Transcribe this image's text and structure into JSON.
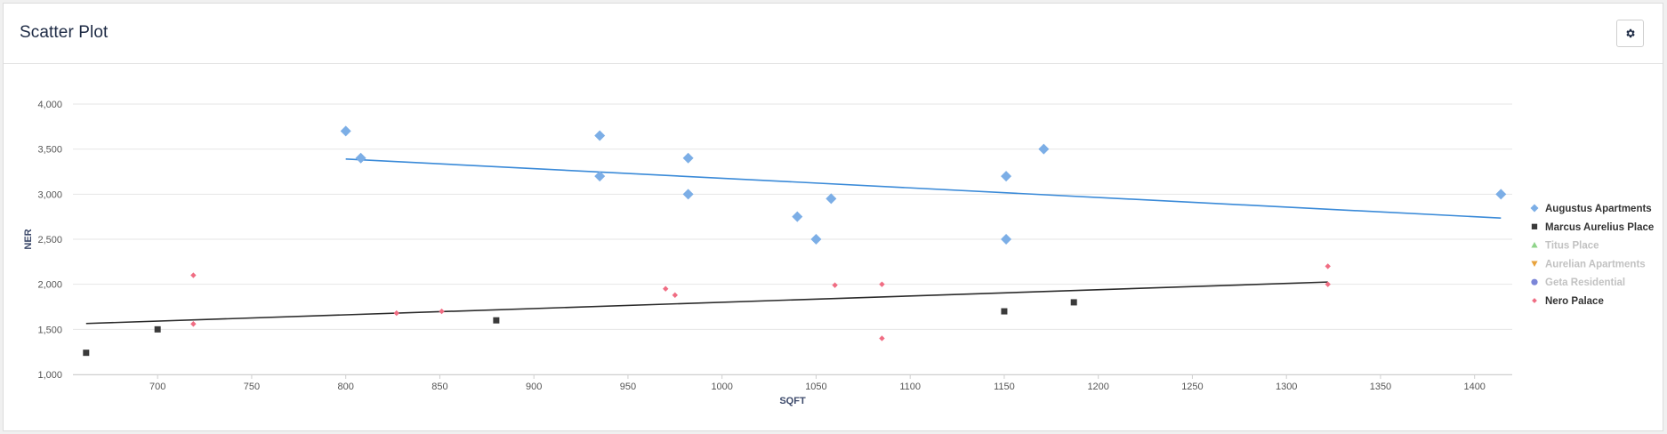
{
  "panel": {
    "title": "Scatter Plot",
    "settings_icon": "gear-icon"
  },
  "chart_data": {
    "type": "scatter",
    "xlabel": "SQFT",
    "ylabel": "NER",
    "xlim": [
      655,
      1420
    ],
    "ylim": [
      1000,
      4000
    ],
    "x_ticks": [
      700,
      750,
      800,
      850,
      900,
      950,
      1000,
      1050,
      1100,
      1150,
      1200,
      1250,
      1300,
      1350,
      1400
    ],
    "y_ticks": [
      1000,
      1500,
      2000,
      2500,
      3000,
      3500,
      4000
    ],
    "grid": "horizontal",
    "legend_position": "right",
    "series": [
      {
        "name": "Augustus Apartments",
        "marker": "diamond",
        "color": "#7caee6",
        "visible": true,
        "points": [
          [
            800,
            3700
          ],
          [
            808,
            3400
          ],
          [
            935,
            3650
          ],
          [
            935,
            3200
          ],
          [
            982,
            3400
          ],
          [
            982,
            3000
          ],
          [
            1040,
            2750
          ],
          [
            1050,
            2500
          ],
          [
            1058,
            2950
          ],
          [
            1151,
            3200
          ],
          [
            1151,
            2500
          ],
          [
            1171,
            3500
          ],
          [
            1414,
            3000
          ]
        ],
        "trendline": {
          "color": "#3a8ad8",
          "from": [
            800,
            3390
          ],
          "to": [
            1414,
            2735
          ]
        }
      },
      {
        "name": "Marcus Aurelius Place",
        "marker": "square",
        "color": "#3a3a3a",
        "visible": true,
        "points": [
          [
            662,
            1240
          ],
          [
            700,
            1500
          ],
          [
            880,
            1600
          ],
          [
            1150,
            1700
          ],
          [
            1187,
            1800
          ]
        ],
        "trendline": {
          "color": "#2b2b2b",
          "from": [
            662,
            1565
          ],
          "to": [
            1322,
            2025
          ]
        }
      },
      {
        "name": "Titus Place",
        "marker": "triangle-up",
        "color": "#8fd48a",
        "visible": false,
        "points": []
      },
      {
        "name": "Aurelian Apartments",
        "marker": "triangle-down",
        "color": "#e8a33d",
        "visible": false,
        "points": []
      },
      {
        "name": "Geta Residential",
        "marker": "circle",
        "color": "#7b86d8",
        "visible": false,
        "points": []
      },
      {
        "name": "Nero Palace",
        "marker": "small-diamond",
        "color": "#f06d83",
        "visible": true,
        "points": [
          [
            719,
            2100
          ],
          [
            719,
            1560
          ],
          [
            827,
            1680
          ],
          [
            851,
            1700
          ],
          [
            970,
            1950
          ],
          [
            975,
            1880
          ],
          [
            1060,
            1990
          ],
          [
            1085,
            2000
          ],
          [
            1085,
            1400
          ],
          [
            1322,
            2200
          ],
          [
            1322,
            2000
          ]
        ]
      }
    ],
    "legend_hidden_color": "#c2c2c2",
    "legend_visible_color": "#333333"
  }
}
